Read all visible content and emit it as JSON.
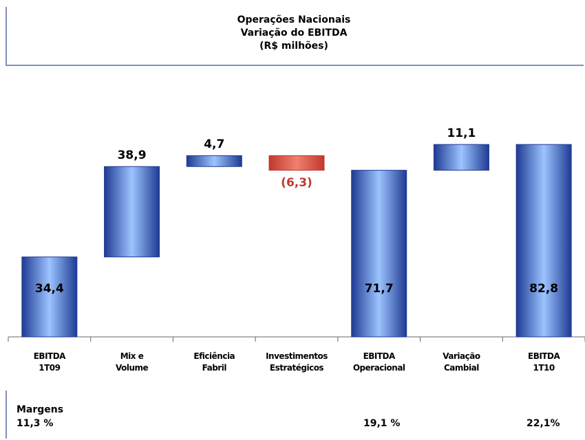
{
  "chart_data": {
    "type": "waterfall",
    "title": "Operações Nacionais\nVariação do EBITDA\n(R$ milhões)",
    "categories": [
      "EBITDA\n1T09",
      "Mix e\nVolume",
      "Eficiência\nFabril",
      "Investimentos\nEstratégicos",
      "EBITDA\nOperacional",
      "Variação\nCambial",
      "EBITDA\n1T10"
    ],
    "values": [
      34.4,
      38.9,
      4.7,
      -6.3,
      71.7,
      11.1,
      82.8
    ],
    "value_labels": [
      "34,4",
      "38,9",
      "4,7",
      "(6,3)",
      "71,7",
      "11,1",
      "82,8"
    ],
    "bar_kinds": [
      "total",
      "delta",
      "delta",
      "delta",
      "total",
      "delta",
      "total"
    ],
    "color": "#1f3a93",
    "negative_color": "#c0392b",
    "ylim": [
      0,
      100
    ]
  },
  "margins": {
    "title": "Margens",
    "values": [
      "11,3 %",
      "19,1 %",
      "22,1%"
    ]
  }
}
